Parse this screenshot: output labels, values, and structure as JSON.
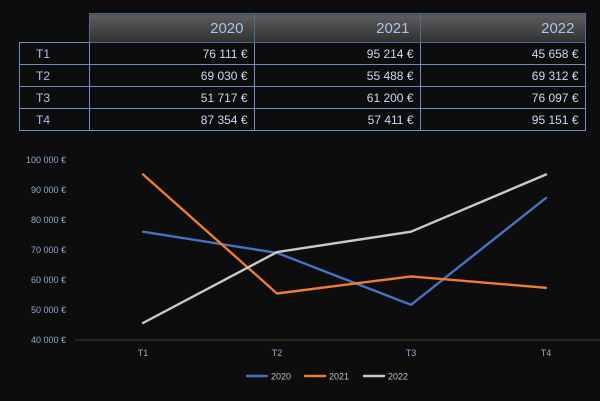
{
  "table": {
    "headers": [
      "2020",
      "2021",
      "2022"
    ],
    "rows": [
      {
        "label": "T1",
        "values": [
          "76 111 €",
          "95 214 €",
          "45 658 €"
        ]
      },
      {
        "label": "T2",
        "values": [
          "69 030 €",
          "55 488 €",
          "69 312 €"
        ]
      },
      {
        "label": "T3",
        "values": [
          "51 717 €",
          "61 200 €",
          "76 097 €"
        ]
      },
      {
        "label": "T4",
        "values": [
          "87 354 €",
          "57 411 €",
          "95 151 €"
        ]
      }
    ]
  },
  "chart_data": {
    "type": "line",
    "categories": [
      "T1",
      "T2",
      "T3",
      "T4"
    ],
    "series": [
      {
        "name": "2020",
        "color": "#4472c4",
        "values": [
          76111,
          69030,
          51717,
          87354
        ]
      },
      {
        "name": "2021",
        "color": "#ed7d31",
        "values": [
          95214,
          55488,
          61200,
          57411
        ]
      },
      {
        "name": "2022",
        "color": "#c9c9c9",
        "values": [
          45658,
          69312,
          76097,
          95151
        ]
      }
    ],
    "ylim": [
      40000,
      100000
    ],
    "yticks": [
      40000,
      50000,
      60000,
      70000,
      80000,
      90000,
      100000
    ],
    "ytick_labels": [
      "40 000 €",
      "50 000 €",
      "60 000 €",
      "70 000 €",
      "80 000 €",
      "90 000 €",
      "100 000 €"
    ],
    "grid": false,
    "legend": "bottom",
    "title": "",
    "xlabel": "",
    "ylabel": ""
  }
}
